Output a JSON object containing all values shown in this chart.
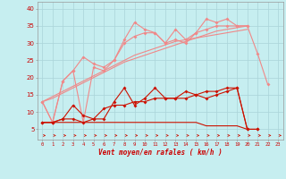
{
  "x": [
    0,
    1,
    2,
    3,
    4,
    5,
    6,
    7,
    8,
    9,
    10,
    11,
    12,
    13,
    14,
    15,
    16,
    17,
    18,
    19,
    20,
    21,
    22,
    23
  ],
  "line1": [
    13,
    7,
    19,
    22,
    26,
    24,
    23,
    25,
    31,
    36,
    34,
    33,
    30,
    34,
    31,
    33,
    37,
    36,
    37,
    35,
    35,
    27,
    18,
    null
  ],
  "line2": [
    13,
    7,
    19,
    22,
    7,
    23,
    22,
    25,
    30,
    32,
    33,
    33,
    30,
    31,
    30,
    33,
    34,
    35,
    35,
    35,
    35,
    null,
    null,
    null
  ],
  "line3_linear1": [
    13,
    14.5,
    16,
    17.5,
    19,
    20.5,
    22,
    23.5,
    25,
    26.5,
    27.5,
    28.5,
    29.5,
    30.5,
    31,
    31.5,
    32.5,
    33.5,
    34,
    34.5,
    35,
    null,
    null,
    null
  ],
  "line3_linear2": [
    13,
    14,
    15.5,
    17,
    18.5,
    20,
    21.5,
    23,
    24.5,
    25.5,
    26.5,
    27.5,
    28.5,
    29.5,
    30.5,
    31.5,
    32,
    32.5,
    33,
    33.5,
    34,
    null,
    null,
    null
  ],
  "line4": [
    7,
    7,
    8,
    12,
    9,
    8,
    8,
    13,
    17,
    12,
    14,
    17,
    14,
    14,
    16,
    15,
    16,
    16,
    17,
    17,
    5,
    5,
    null,
    null
  ],
  "line5": [
    7,
    7,
    8,
    8,
    7,
    8,
    11,
    12,
    12,
    13,
    13,
    14,
    14,
    14,
    14,
    15,
    14,
    15,
    16,
    17,
    5,
    5,
    null,
    null
  ],
  "line6": [
    7,
    7,
    7,
    7,
    7,
    7,
    7,
    7,
    7,
    7,
    7,
    7,
    7,
    7,
    7,
    7,
    6,
    6,
    6,
    6,
    5,
    5,
    null,
    null
  ],
  "bg_color": "#c6eef0",
  "grid_color": "#aad4d8",
  "line_color_light": "#f08888",
  "line_color_dark": "#cc1100",
  "xlabel": "Vent moyen/en rafales ( km/h )",
  "ylabel_ticks": [
    5,
    10,
    15,
    20,
    25,
    30,
    35,
    40
  ],
  "xlim": [
    -0.5,
    23.5
  ],
  "ylim": [
    2,
    42
  ]
}
